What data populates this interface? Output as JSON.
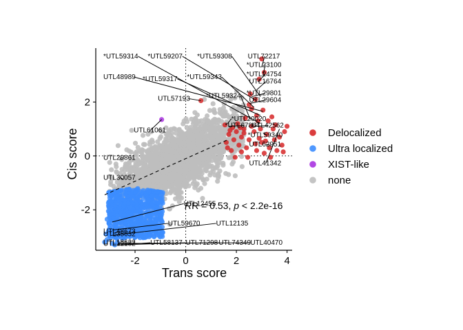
{
  "chart_data": {
    "type": "scatter",
    "title": "",
    "xlabel": "Trans score",
    "ylabel": "Cis score",
    "xlim": [
      -3.55,
      4.2
    ],
    "ylim": [
      -3.5,
      4.0
    ],
    "xticks": [
      -2,
      0,
      2,
      4
    ],
    "yticks": [
      -2,
      0,
      2
    ],
    "reference_lines": {
      "x": 0,
      "y": 0,
      "style": "dotted"
    },
    "regression_line": {
      "slope": 0.42,
      "intercept": -0.1,
      "x_range": [
        -3.2,
        1.7
      ],
      "style": "dashed"
    },
    "annotation": {
      "prefix": "R = 0.53, ",
      "p_symbol": "p",
      "suffix": " < 2.2e-16"
    },
    "legend": {
      "position": "right",
      "entries": [
        {
          "name": "Delocalized",
          "color": "#D62728"
        },
        {
          "name": "Ultra localized",
          "color": "#3C8DFF"
        },
        {
          "name": "XIST-like",
          "color": "#A933E0"
        },
        {
          "name": "none",
          "color": "#BEBEBE"
        }
      ]
    },
    "series": [
      {
        "name": "none",
        "color": "#BEBEBE",
        "cloud": {
          "count": 2200,
          "x_range": [
            -3.0,
            2.3
          ],
          "slope": 0.45,
          "intercept": -0.05,
          "spread": 0.55
        }
      },
      {
        "name": "Ultra localized",
        "color": "#3C8DFF",
        "cloud": {
          "count": 650,
          "x_range": [
            -3.05,
            -0.9
          ],
          "y_range": [
            -3.05,
            -1.2
          ]
        },
        "points": [
          [
            -3.05,
            -2.05
          ],
          [
            -3.1,
            -2.35
          ],
          [
            -3.0,
            -2.7
          ],
          [
            -3.15,
            -2.9
          ],
          [
            -3.1,
            -3.1
          ],
          [
            -3.2,
            -3.2
          ],
          [
            -2.9,
            -3.25
          ],
          [
            -2.7,
            -3.2
          ],
          [
            -2.75,
            -2.6
          ],
          [
            -1.5,
            -2.2
          ],
          [
            -2.8,
            -3.3
          ]
        ]
      },
      {
        "name": "Delocalized",
        "color": "#D62728",
        "points": [
          [
            3.0,
            3.6
          ],
          [
            3.1,
            3.1
          ],
          [
            2.9,
            2.85
          ],
          [
            2.55,
            2.3
          ],
          [
            2.75,
            2.1
          ],
          [
            2.6,
            1.75
          ],
          [
            3.05,
            1.7
          ],
          [
            2.8,
            1.5
          ],
          [
            3.25,
            1.3
          ],
          [
            2.95,
            1.0
          ],
          [
            0.6,
            2.05
          ],
          [
            2.3,
            1.0
          ],
          [
            1.7,
            0.8
          ],
          [
            1.9,
            0.6
          ],
          [
            2.1,
            0.4
          ],
          [
            2.5,
            0.6
          ],
          [
            2.7,
            0.9
          ],
          [
            1.8,
            0.2
          ],
          [
            2.2,
            0.15
          ],
          [
            2.0,
            0.9
          ],
          [
            3.5,
            0.6
          ],
          [
            3.8,
            0.4
          ],
          [
            3.3,
            0.3
          ],
          [
            2.4,
            0.3
          ],
          [
            2.8,
            0.2
          ],
          [
            3.1,
            0.1
          ],
          [
            1.6,
            0.5
          ],
          [
            2.05,
            1.2
          ],
          [
            2.35,
            1.4
          ],
          [
            3.7,
            0.7
          ],
          [
            3.0,
            0.5
          ],
          [
            3.6,
            0.2
          ],
          [
            1.55,
            1.15
          ],
          [
            2.6,
            1.1
          ],
          [
            3.2,
            0.8
          ],
          [
            2.9,
            0.65
          ],
          [
            3.45,
            1.0
          ],
          [
            2.2,
            0.7
          ],
          [
            1.75,
            0.95
          ],
          [
            3.9,
            0.9
          ],
          [
            2.45,
            -0.05
          ],
          [
            3.35,
            -0.05
          ],
          [
            1.95,
            -0.05
          ],
          [
            2.75,
            0.45
          ],
          [
            3.15,
            0.55
          ],
          [
            4.0,
            1.1
          ],
          [
            2.15,
            1.05
          ],
          [
            3.4,
            1.45
          ],
          [
            2.5,
            1.9
          ],
          [
            2.85,
            1.3
          ],
          [
            1.65,
            0.3
          ],
          [
            3.85,
            0.15
          ],
          [
            2.3,
            0.85
          ],
          [
            3.55,
            1.15
          ],
          [
            1.85,
            1.05
          ]
        ]
      },
      {
        "name": "XIST-like",
        "color": "#A933E0",
        "points": [
          [
            -0.95,
            1.35
          ]
        ]
      }
    ],
    "labels": [
      {
        "text": "*UTL59314",
        "tx": -3.25,
        "ty": 3.62,
        "px": 2.95,
        "py": 1.2
      },
      {
        "text": "*UTL59207",
        "tx": -1.5,
        "ty": 3.62,
        "px": 2.8,
        "py": 2.05
      },
      {
        "text": "*UTL59308",
        "tx": 0.45,
        "ty": 3.62,
        "px": 2.95,
        "py": 2.2
      },
      {
        "text": "UTL72217",
        "tx": 2.45,
        "ty": 3.62,
        "px": 3.0,
        "py": 3.3
      },
      {
        "text": "*UTL23100",
        "tx": 2.4,
        "ty": 3.3,
        "px": 3.05,
        "py": 3.0
      },
      {
        "text": "UTL48989",
        "tx": -3.25,
        "ty": 2.85,
        "px": 3.05,
        "py": 1.65
      },
      {
        "text": "*UTL59317",
        "tx": -1.7,
        "ty": 2.78,
        "px": 2.95,
        "py": 1.5
      },
      {
        "text": "*UTL59343",
        "tx": 0.05,
        "ty": 2.85,
        "px": 2.7,
        "py": 1.8
      },
      {
        "text": "*UTL24754",
        "tx": 2.4,
        "ty": 2.95,
        "px": 2.85,
        "py": 2.75
      },
      {
        "text": "UTL16764",
        "tx": 2.5,
        "ty": 2.68,
        "px": 2.8,
        "py": 2.45
      },
      {
        "text": "*UTL29801",
        "tx": 2.4,
        "ty": 2.25,
        "px": 2.6,
        "py": 2.2
      },
      {
        "text": "UTL29604",
        "tx": 2.5,
        "ty": 2.0,
        "px": 2.55,
        "py": 1.95
      },
      {
        "text": "UTL57193",
        "tx": -1.1,
        "ty": 2.05,
        "px": 0.6,
        "py": 2.05
      },
      {
        "text": "*UTL59324",
        "tx": 0.8,
        "ty": 2.15,
        "px": 2.55,
        "py": 1.35
      },
      {
        "text": "*UTL20020",
        "tx": 1.8,
        "ty": 1.3,
        "px": 1.65,
        "py": 1.2
      },
      {
        "text": "*UTL67864",
        "tx": 1.55,
        "ty": 1.05,
        "px": 1.7,
        "py": 1.1
      },
      {
        "text": "UTL42562",
        "tx": 2.6,
        "ty": 1.05,
        "px": 2.7,
        "py": 1.1
      },
      {
        "text": "*UTL59340",
        "tx": 2.45,
        "ty": 0.7,
        "px": 3.05,
        "py": 0.85
      },
      {
        "text": "UTL62951",
        "tx": 2.5,
        "ty": 0.35,
        "px": 3.35,
        "py": 0.4
      },
      {
        "text": "UTL41342",
        "tx": 2.5,
        "ty": -0.35,
        "px": 3.7,
        "py": 1.0
      },
      {
        "text": "UTL61061",
        "tx": -2.05,
        "ty": 0.88,
        "px": -0.95,
        "py": 1.35
      },
      {
        "text": "UTL29861",
        "tx": -3.25,
        "ty": -0.15,
        "px": -2.55,
        "py": -0.15
      },
      {
        "text": "UTL30057",
        "tx": -3.25,
        "ty": -0.88,
        "px": -2.45,
        "py": -0.88
      },
      {
        "text": "UTL12455",
        "tx": -0.08,
        "ty": -1.85,
        "px": -2.9,
        "py": -2.45
      },
      {
        "text": "UTL59670",
        "tx": -0.7,
        "ty": -2.58,
        "px": -2.9,
        "py": -2.75
      },
      {
        "text": "UTL12135",
        "tx": 1.2,
        "ty": -2.58,
        "px": -2.95,
        "py": -2.95
      },
      {
        "text": "UTL48673",
        "tx": -3.25,
        "ty": -2.88,
        "px": -2.8,
        "py": -2.85
      },
      {
        "text": "UTL35632",
        "tx": -3.25,
        "ty": -2.98,
        "px": -2.85,
        "py": -2.95
      },
      {
        "text": "UTL18622",
        "tx": -3.25,
        "ty": -3.28,
        "px": -2.65,
        "py": -3.25
      },
      {
        "text": "UTL12182",
        "tx": -3.25,
        "ty": -3.33,
        "px": -2.65,
        "py": -3.25
      },
      {
        "text": "UTL58137",
        "tx": -1.4,
        "ty": -3.3,
        "px": -2.6,
        "py": -3.3
      },
      {
        "text": "UTL71298",
        "tx": 0.0,
        "ty": -3.3,
        "px": -2.7,
        "py": -3.3
      },
      {
        "text": "UTL74349",
        "tx": 1.3,
        "ty": -3.3,
        "px": -2.6,
        "py": -3.25
      },
      {
        "text": "UTL40470",
        "tx": 2.55,
        "ty": -3.3,
        "px": -2.55,
        "py": -3.25
      }
    ]
  }
}
